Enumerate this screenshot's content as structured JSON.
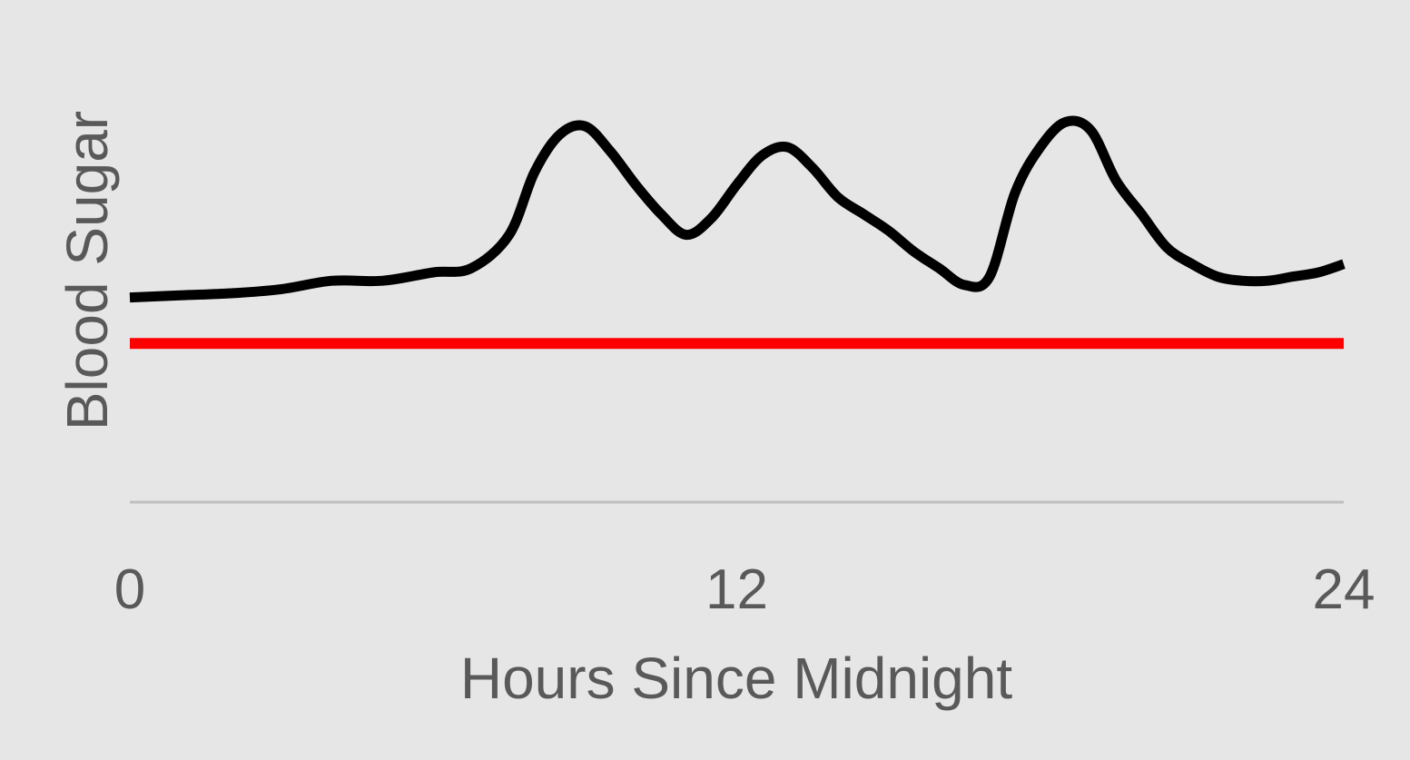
{
  "chart_data": {
    "type": "line",
    "title": "",
    "xlabel": "Hours Since Midnight",
    "ylabel": "Blood Sugar",
    "xlim": [
      0,
      24
    ],
    "ylim": [
      0,
      100
    ],
    "x_ticks": [
      "0",
      "12",
      "24"
    ],
    "y_ticks": [],
    "grid": false,
    "legend": "none",
    "colors": {
      "background": "#e6e6e6",
      "series_line": "#000000",
      "reference_line": "#ff0000",
      "baseline": "#bfbfbf",
      "text": "#595959"
    },
    "series": [
      {
        "role": "blood-sugar-curve",
        "x": [
          0,
          1,
          2,
          3,
          4,
          5,
          6,
          6.75,
          7.5,
          8,
          8.5,
          9,
          9.5,
          10,
          10.5,
          11,
          11.5,
          12,
          12.5,
          13,
          13.5,
          14,
          14.5,
          15,
          15.5,
          16,
          16.5,
          17,
          17.5,
          18,
          18.5,
          19,
          19.5,
          20,
          20.5,
          21,
          21.5,
          22,
          22.5,
          23,
          23.5,
          24
        ],
        "values": [
          49,
          49.5,
          50,
          51,
          53,
          53,
          55,
          56,
          64,
          79,
          88,
          90,
          84,
          76,
          69,
          64,
          68,
          76,
          83,
          85,
          80,
          73,
          69,
          65,
          60,
          56,
          52,
          54,
          74,
          85,
          91,
          89,
          77,
          69,
          61,
          57,
          54,
          53,
          53,
          54,
          55,
          57
        ]
      },
      {
        "role": "reference-line",
        "x": [
          0,
          24
        ],
        "values": [
          38,
          38
        ]
      }
    ]
  }
}
